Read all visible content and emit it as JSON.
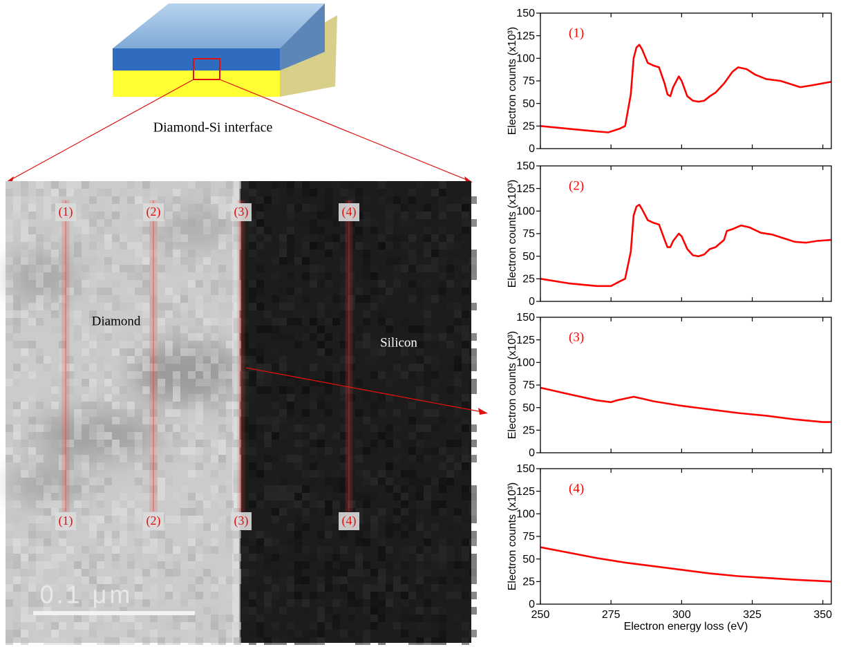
{
  "diagram": {
    "caption": "Diamond-Si interface"
  },
  "micrograph": {
    "markers_top": [
      "(1)",
      "(2)",
      "(3)",
      "(4)"
    ],
    "markers_bottom": [
      "(1)",
      "(2)",
      "(3)",
      "(4)"
    ],
    "regions": [
      "Diamond",
      "Silicon"
    ],
    "scale_bar": "0.1 μm"
  },
  "chart_data": [
    {
      "type": "line",
      "label": "(1)",
      "ylabel": "Electron counts (x10³)",
      "color": "#ff0000",
      "x": [
        250,
        260,
        270,
        274,
        278,
        280,
        282,
        283,
        284,
        285,
        286,
        288,
        290,
        292,
        294,
        295,
        296,
        297,
        299,
        300,
        302,
        304,
        306,
        308,
        310,
        312,
        315,
        318,
        320,
        323,
        326,
        330,
        335,
        340,
        342,
        346,
        353
      ],
      "values": [
        25,
        22,
        19,
        18,
        22,
        25,
        60,
        100,
        112,
        115,
        110,
        95,
        92,
        90,
        72,
        60,
        58,
        68,
        80,
        75,
        58,
        53,
        52,
        53,
        58,
        62,
        72,
        85,
        90,
        88,
        82,
        77,
        75,
        70,
        68,
        70,
        74
      ],
      "xlim": [
        250,
        353
      ],
      "xticks": [
        250,
        275,
        300,
        325,
        350
      ],
      "ylim": [
        0,
        150
      ],
      "yticks": [
        0,
        25,
        50,
        75,
        100,
        125,
        150
      ]
    },
    {
      "type": "line",
      "label": "(2)",
      "ylabel": "Electron counts (x10³)",
      "color": "#ff0000",
      "x": [
        250,
        260,
        270,
        275,
        278,
        280,
        282,
        283,
        284,
        285,
        286,
        288,
        290,
        292,
        294,
        295,
        296,
        297,
        299,
        300,
        302,
        304,
        306,
        308,
        310,
        312,
        315,
        316,
        318,
        321,
        324,
        328,
        332,
        336,
        340,
        344,
        348,
        353
      ],
      "values": [
        25,
        20,
        17,
        17,
        22,
        25,
        55,
        95,
        105,
        107,
        102,
        90,
        87,
        85,
        68,
        60,
        60,
        67,
        75,
        72,
        58,
        51,
        50,
        52,
        58,
        60,
        68,
        78,
        80,
        84,
        82,
        76,
        74,
        70,
        66,
        65,
        67,
        68
      ],
      "xlim": [
        250,
        353
      ],
      "xticks": [
        250,
        275,
        300,
        325,
        350
      ],
      "ylim": [
        0,
        150
      ],
      "yticks": [
        0,
        25,
        50,
        75,
        100,
        125,
        150
      ]
    },
    {
      "type": "line",
      "label": "(3)",
      "ylabel": "Electron counts (x10³)",
      "color": "#ff0000",
      "x": [
        250,
        260,
        270,
        275,
        277,
        280,
        283,
        286,
        290,
        300,
        310,
        320,
        330,
        340,
        350,
        353
      ],
      "values": [
        72,
        65,
        58,
        56,
        58,
        60,
        62,
        60,
        57,
        52,
        48,
        44,
        41,
        37,
        34,
        34
      ],
      "xlim": [
        250,
        353
      ],
      "xticks": [
        250,
        275,
        300,
        325,
        350
      ],
      "ylim": [
        0,
        150
      ],
      "yticks": [
        0,
        25,
        50,
        75,
        100,
        125,
        150
      ]
    },
    {
      "type": "line",
      "label": "(4)",
      "ylabel": "Electron counts (x10³)",
      "xlabel": "Electron energy loss (eV)",
      "color": "#ff0000",
      "x": [
        250,
        260,
        270,
        280,
        290,
        300,
        310,
        320,
        330,
        340,
        353
      ],
      "values": [
        63,
        57,
        51,
        46,
        42,
        38,
        34,
        31,
        29,
        27,
        25
      ],
      "xlim": [
        250,
        353
      ],
      "xticks": [
        250,
        275,
        300,
        325,
        350
      ],
      "ylim": [
        0,
        150
      ],
      "yticks": [
        0,
        25,
        50,
        75,
        100,
        125,
        150
      ]
    }
  ]
}
